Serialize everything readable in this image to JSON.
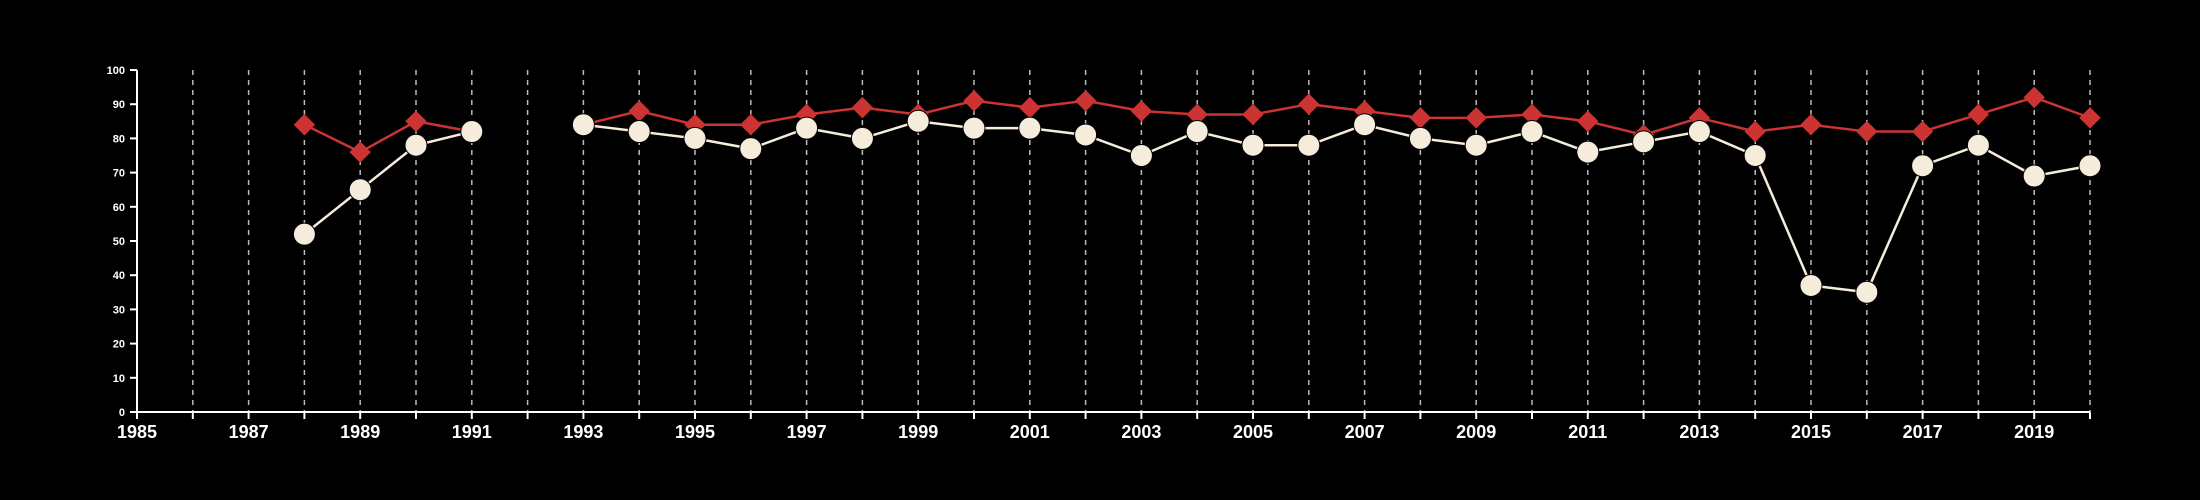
{
  "chart_data": {
    "type": "line",
    "title": "",
    "xlabel": "",
    "ylabel": "",
    "xlim": [
      1985,
      2020
    ],
    "ylim": [
      0,
      100
    ],
    "x_ticks": [
      1985,
      1987,
      1989,
      1991,
      1993,
      1995,
      1997,
      1999,
      2001,
      2003,
      2005,
      2007,
      2009,
      2011,
      2013,
      2015,
      2017,
      2019
    ],
    "y_ticks": [
      0,
      10,
      20,
      30,
      40,
      50,
      60,
      70,
      80,
      90,
      100
    ],
    "grid": "vertical dashed lines at each year",
    "legend": "none",
    "background": "#000000",
    "series": [
      {
        "marker": "diamond",
        "color": "#cc3333",
        "points": [
          [
            1988,
            84
          ],
          [
            1989,
            76
          ],
          [
            1990,
            85
          ],
          [
            1991,
            82
          ],
          [
            1993,
            84
          ],
          [
            1994,
            88
          ],
          [
            1995,
            84
          ],
          [
            1996,
            84
          ],
          [
            1997,
            87
          ],
          [
            1998,
            89
          ],
          [
            1999,
            87
          ],
          [
            2000,
            91
          ],
          [
            2001,
            89
          ],
          [
            2002,
            91
          ],
          [
            2003,
            88
          ],
          [
            2004,
            87
          ],
          [
            2005,
            87
          ],
          [
            2006,
            90
          ],
          [
            2007,
            88
          ],
          [
            2008,
            86
          ],
          [
            2009,
            86
          ],
          [
            2010,
            87
          ],
          [
            2011,
            85
          ],
          [
            2012,
            81
          ],
          [
            2013,
            86
          ],
          [
            2014,
            82
          ],
          [
            2015,
            84
          ],
          [
            2016,
            82
          ],
          [
            2017,
            82
          ],
          [
            2018,
            87
          ],
          [
            2019,
            92
          ],
          [
            2020,
            86
          ]
        ]
      },
      {
        "marker": "circle",
        "color": "#f5ecdc",
        "points": [
          [
            1988,
            52
          ],
          [
            1989,
            65
          ],
          [
            1990,
            78
          ],
          [
            1991,
            82
          ],
          [
            1993,
            84
          ],
          [
            1994,
            82
          ],
          [
            1995,
            80
          ],
          [
            1996,
            77
          ],
          [
            1997,
            83
          ],
          [
            1998,
            80
          ],
          [
            1999,
            85
          ],
          [
            2000,
            83
          ],
          [
            2001,
            83
          ],
          [
            2002,
            81
          ],
          [
            2003,
            75
          ],
          [
            2004,
            82
          ],
          [
            2005,
            78
          ],
          [
            2006,
            78
          ],
          [
            2007,
            84
          ],
          [
            2008,
            80
          ],
          [
            2009,
            78
          ],
          [
            2010,
            82
          ],
          [
            2011,
            76
          ],
          [
            2012,
            79
          ],
          [
            2013,
            82
          ],
          [
            2014,
            75
          ],
          [
            2015,
            37
          ],
          [
            2016,
            35
          ],
          [
            2017,
            72
          ],
          [
            2018,
            78
          ],
          [
            2019,
            69
          ],
          [
            2020,
            72
          ]
        ]
      }
    ]
  }
}
